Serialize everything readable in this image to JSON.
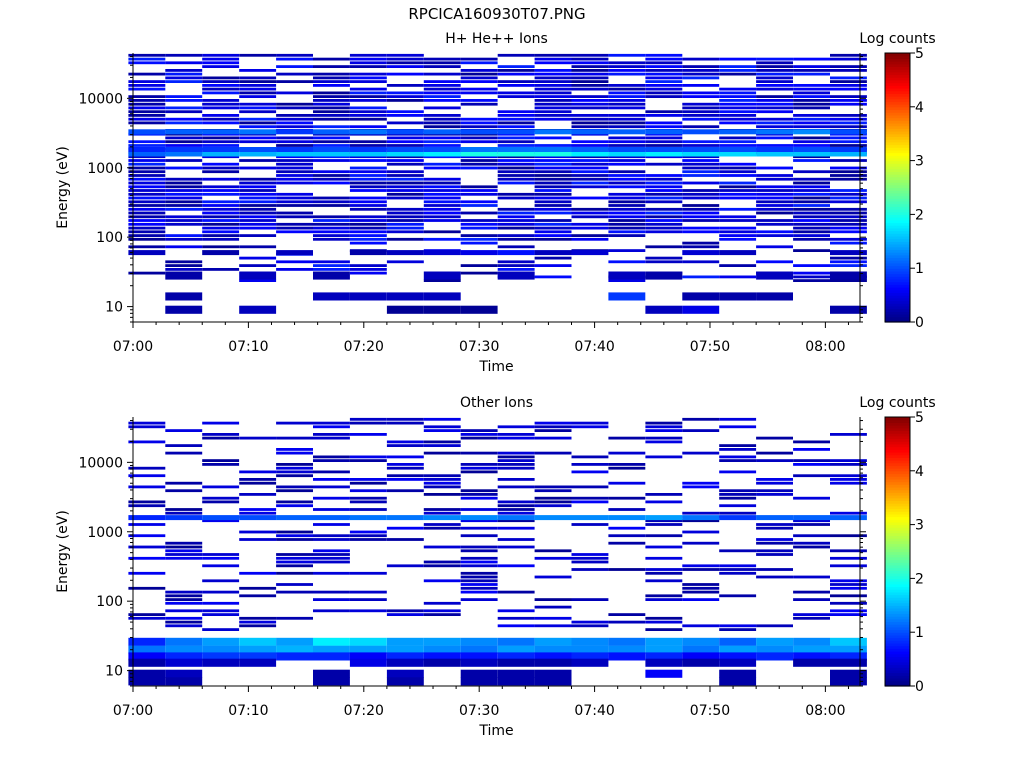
{
  "figure": {
    "title": "RPCICA160930T07.PNG"
  },
  "chart_data": [
    {
      "type": "heatmap",
      "title": "H+ He++ Ions",
      "xlabel": "Time",
      "ylabel": "Energy (eV)",
      "x_ticks": [
        "07:00",
        "07:10",
        "07:20",
        "07:30",
        "07:40",
        "07:50",
        "08:00"
      ],
      "y_ticks": [
        "10",
        "100",
        "1000",
        "10000"
      ],
      "y_scale": "log",
      "ylim": [
        6,
        45000
      ],
      "xlim": [
        "07:00",
        "08:03"
      ],
      "colorbar": {
        "label": "Log counts",
        "ticks": [
          "0",
          "1",
          "2",
          "3",
          "4",
          "5"
        ],
        "range": [
          0,
          5
        ]
      },
      "time_bins": [
        "07:01:12",
        "07:04:24",
        "07:07:36",
        "07:10:48",
        "07:14:00",
        "07:17:12",
        "07:20:24",
        "07:23:36",
        "07:26:48",
        "07:30:00",
        "07:33:12",
        "07:36:24",
        "07:39:36",
        "07:42:48",
        "07:46:00",
        "07:49:12",
        "07:52:24",
        "07:55:36",
        "07:58:48",
        "08:02:00"
      ],
      "bands": [
        {
          "energy_ev": 1580,
          "values": [
            1.1,
            1.2,
            1.5,
            1.5,
            1.6,
            1.6,
            1.6,
            1.7,
            1.8,
            2.0,
            2.0,
            2.0,
            1.8,
            1.7,
            1.8,
            1.7,
            1.7,
            1.6,
            1.6,
            1.5
          ]
        },
        {
          "energy_ev": 1830,
          "values": [
            0.8,
            0.9,
            0.9,
            1.0,
            0.9,
            1.0,
            0.9,
            1.0,
            1.0,
            1.2,
            1.2,
            1.2,
            1.1,
            1.0,
            1.0,
            1.0,
            1.0,
            0.9,
            1.0,
            0.9
          ]
        },
        {
          "energy_ev": 3300,
          "values": [
            1.0,
            1.1,
            1.1,
            1.2,
            0.9,
            1.1,
            1.2,
            1.0,
            1.1,
            1.0,
            1.0,
            1.2,
            1.1,
            1.1,
            1.1,
            1.0,
            1.1,
            1.2,
            1.3,
            1.0
          ]
        },
        {
          "energy_ev": 60,
          "values": [
            0.3,
            0,
            0.2,
            0,
            0.3,
            0,
            0.2,
            0.3,
            0.4,
            0.5,
            0.7,
            0.3,
            0.4,
            0,
            0,
            0.4,
            0.3,
            0,
            0,
            0.3
          ]
        },
        {
          "energy_ev": 28,
          "values": [
            0,
            0.2,
            0,
            0.3,
            0,
            0.2,
            0,
            0,
            0.3,
            0,
            0.3,
            0,
            0,
            0.3,
            0.2,
            0,
            0,
            0.3,
            0,
            0.2
          ]
        },
        {
          "energy_ev": 14,
          "values": [
            0,
            0.2,
            0,
            0,
            0,
            0.3,
            0.3,
            0.3,
            0.3,
            0,
            0,
            0,
            0,
            0.9,
            0,
            0.2,
            0.2,
            0.2,
            0,
            0
          ]
        },
        {
          "energy_ev": 9,
          "values": [
            0,
            0.2,
            0,
            0.3,
            0,
            0,
            0,
            0.1,
            0.1,
            0.1,
            0,
            0,
            0,
            0,
            0.3,
            0.5,
            0,
            0,
            0,
            0.2
          ]
        }
      ],
      "background": {
        "min_ev": 80,
        "max_ev": 42000,
        "fill": 0.78,
        "values_range": [
          0.1,
          0.8
        ],
        "low_min_ev": 22,
        "low_fill": 0.3
      }
    },
    {
      "type": "heatmap",
      "title": "Other Ions",
      "xlabel": "Time",
      "ylabel": "Energy (eV)",
      "x_ticks": [
        "07:00",
        "07:10",
        "07:20",
        "07:30",
        "07:40",
        "07:50",
        "08:00"
      ],
      "y_ticks": [
        "10",
        "100",
        "1000",
        "10000"
      ],
      "y_scale": "log",
      "ylim": [
        6,
        45000
      ],
      "xlim": [
        "07:00",
        "08:03"
      ],
      "colorbar": {
        "label": "Log counts",
        "ticks": [
          "0",
          "1",
          "2",
          "3",
          "4",
          "5"
        ],
        "range": [
          0,
          5
        ]
      },
      "time_bins": [
        "07:01:12",
        "07:04:24",
        "07:07:36",
        "07:10:48",
        "07:14:00",
        "07:17:12",
        "07:20:24",
        "07:23:36",
        "07:26:48",
        "07:30:00",
        "07:33:12",
        "07:36:24",
        "07:39:36",
        "07:42:48",
        "07:46:00",
        "07:49:12",
        "07:52:24",
        "07:55:36",
        "07:58:48",
        "08:02:00"
      ],
      "bands": [
        {
          "energy_ev": 1600,
          "values": [
            0.8,
            0.9,
            1.0,
            1.0,
            1.1,
            1.1,
            1.2,
            1.2,
            1.3,
            1.3,
            1.2,
            1.3,
            1.3,
            1.3,
            1.4,
            1.2,
            0.9,
            1.1,
            1.1,
            1.1
          ]
        },
        {
          "energy_ev": 26,
          "values": [
            0.8,
            1.2,
            1.4,
            1.6,
            1.4,
            1.8,
            1.7,
            1.4,
            1.4,
            1.3,
            1.2,
            1.4,
            1.3,
            1.2,
            1.4,
            1.3,
            1.1,
            1.4,
            1.3,
            1.6
          ]
        },
        {
          "energy_ev": 20,
          "values": [
            1.2,
            1.3,
            1.3,
            1.4,
            1.5,
            1.4,
            1.4,
            1.4,
            1.3,
            1.2,
            1.4,
            1.3,
            1.3,
            1.3,
            1.4,
            1.2,
            1.4,
            1.3,
            1.4,
            1.4
          ]
        },
        {
          "energy_ev": 16,
          "values": [
            0.6,
            0.8,
            0.9,
            0.9,
            0.8,
            0.8,
            0.6,
            0.8,
            0.7,
            0.7,
            0.8,
            0.7,
            0.8,
            0.7,
            0.8,
            0.6,
            0.7,
            0.8,
            0.7,
            0.8
          ]
        },
        {
          "energy_ev": 13,
          "values": [
            0.2,
            0.4,
            0.3,
            0.3,
            0,
            0,
            0.5,
            0.3,
            0.2,
            0.3,
            0.2,
            0.2,
            0.3,
            0,
            0.3,
            0.2,
            0.3,
            0,
            0.2,
            0.2
          ]
        },
        {
          "energy_ev": 9,
          "values": [
            0.2,
            0.3,
            0,
            0,
            0,
            0.2,
            0,
            0.3,
            0,
            0.2,
            0.2,
            0.2,
            0,
            0,
            0.6,
            0,
            0.2,
            0,
            0,
            0.2
          ]
        },
        {
          "energy_ev": 7,
          "values": [
            0.2,
            0.2,
            0,
            0,
            0,
            0.2,
            0,
            0.2,
            0,
            0.2,
            0.2,
            0.2,
            0,
            0,
            0,
            0,
            0.2,
            0,
            0,
            0.2
          ]
        }
      ],
      "background": {
        "min_ev": 35,
        "max_ev": 42000,
        "fill": 0.32,
        "values_range": [
          0.1,
          0.6
        ],
        "low_min_ev": 35,
        "low_fill": 0.7
      }
    }
  ]
}
